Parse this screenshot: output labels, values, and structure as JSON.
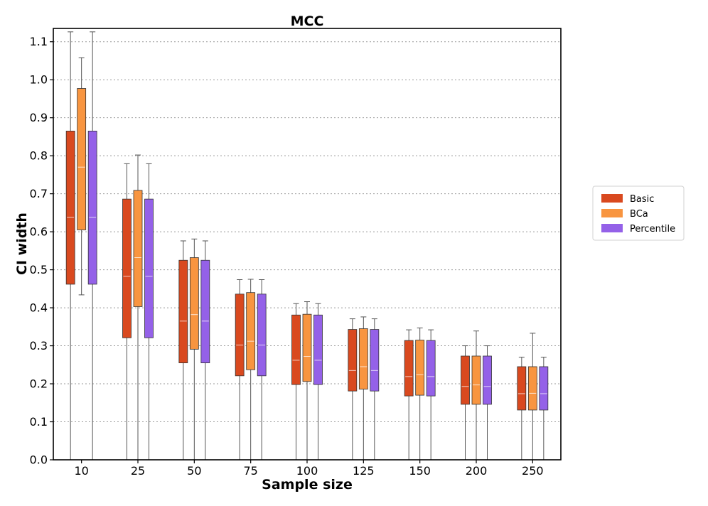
{
  "chart_data": {
    "type": "box",
    "title": "MCC",
    "xlabel": "Sample size",
    "ylabel": "CI width",
    "categories": [
      "10",
      "25",
      "50",
      "75",
      "100",
      "125",
      "150",
      "200",
      "250"
    ],
    "ylim": [
      0.0,
      1.135
    ],
    "yticks": [
      "0.0",
      "0.1",
      "0.2",
      "0.3",
      "0.4",
      "0.5",
      "0.6",
      "0.7",
      "0.8",
      "0.9",
      "1.0",
      "1.1"
    ],
    "grid": "horizontal dotted",
    "legend_position": "right",
    "series": [
      {
        "name": "Basic",
        "color": "#d9491f",
        "boxes": [
          {
            "whislo": 0.0,
            "q1": 0.462,
            "med": 0.638,
            "q3": 0.865,
            "whishi": 1.126
          },
          {
            "whislo": 0.0,
            "q1": 0.321,
            "med": 0.483,
            "q3": 0.686,
            "whishi": 0.779
          },
          {
            "whislo": 0.0,
            "q1": 0.255,
            "med": 0.365,
            "q3": 0.525,
            "whishi": 0.576
          },
          {
            "whislo": 0.0,
            "q1": 0.221,
            "med": 0.302,
            "q3": 0.436,
            "whishi": 0.474
          },
          {
            "whislo": 0.0,
            "q1": 0.198,
            "med": 0.262,
            "q3": 0.381,
            "whishi": 0.411
          },
          {
            "whislo": 0.0,
            "q1": 0.181,
            "med": 0.235,
            "q3": 0.343,
            "whishi": 0.371
          },
          {
            "whislo": 0.0,
            "q1": 0.168,
            "med": 0.219,
            "q3": 0.314,
            "whishi": 0.342
          },
          {
            "whislo": 0.0,
            "q1": 0.146,
            "med": 0.193,
            "q3": 0.273,
            "whishi": 0.3
          },
          {
            "whislo": 0.0,
            "q1": 0.131,
            "med": 0.174,
            "q3": 0.245,
            "whishi": 0.27
          }
        ]
      },
      {
        "name": "BCa",
        "color": "#f89540",
        "boxes": [
          {
            "whislo": 0.434,
            "q1": 0.605,
            "med": 0.77,
            "q3": 0.977,
            "whishi": 1.058
          },
          {
            "whislo": 0.0,
            "q1": 0.403,
            "med": 0.532,
            "q3": 0.709,
            "whishi": 0.802
          },
          {
            "whislo": 0.0,
            "q1": 0.291,
            "med": 0.382,
            "q3": 0.532,
            "whishi": 0.581
          },
          {
            "whislo": 0.0,
            "q1": 0.237,
            "med": 0.312,
            "q3": 0.44,
            "whishi": 0.475
          },
          {
            "whislo": 0.0,
            "q1": 0.206,
            "med": 0.272,
            "q3": 0.383,
            "whishi": 0.416
          },
          {
            "whislo": 0.0,
            "q1": 0.186,
            "med": 0.245,
            "q3": 0.345,
            "whishi": 0.376
          },
          {
            "whislo": 0.0,
            "q1": 0.17,
            "med": 0.224,
            "q3": 0.315,
            "whishi": 0.347
          },
          {
            "whislo": 0.0,
            "q1": 0.146,
            "med": 0.197,
            "q3": 0.273,
            "whishi": 0.339
          },
          {
            "whislo": 0.0,
            "q1": 0.131,
            "med": 0.175,
            "q3": 0.245,
            "whishi": 0.333
          }
        ]
      },
      {
        "name": "Percentile",
        "color": "#9461e8",
        "boxes": [
          {
            "whislo": 0.0,
            "q1": 0.462,
            "med": 0.638,
            "q3": 0.865,
            "whishi": 1.126
          },
          {
            "whislo": 0.0,
            "q1": 0.321,
            "med": 0.483,
            "q3": 0.686,
            "whishi": 0.779
          },
          {
            "whislo": 0.0,
            "q1": 0.255,
            "med": 0.365,
            "q3": 0.525,
            "whishi": 0.576
          },
          {
            "whislo": 0.0,
            "q1": 0.221,
            "med": 0.302,
            "q3": 0.436,
            "whishi": 0.474
          },
          {
            "whislo": 0.0,
            "q1": 0.198,
            "med": 0.262,
            "q3": 0.381,
            "whishi": 0.411
          },
          {
            "whislo": 0.0,
            "q1": 0.181,
            "med": 0.235,
            "q3": 0.343,
            "whishi": 0.371
          },
          {
            "whislo": 0.0,
            "q1": 0.168,
            "med": 0.219,
            "q3": 0.314,
            "whishi": 0.342
          },
          {
            "whislo": 0.0,
            "q1": 0.146,
            "med": 0.193,
            "q3": 0.273,
            "whishi": 0.3
          },
          {
            "whislo": 0.0,
            "q1": 0.131,
            "med": 0.174,
            "q3": 0.245,
            "whishi": 0.27
          }
        ]
      }
    ]
  }
}
